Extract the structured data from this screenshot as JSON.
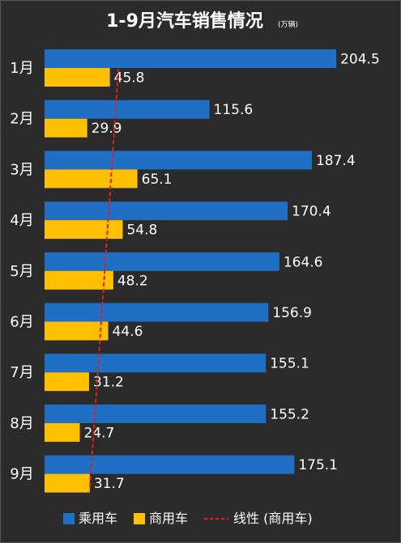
{
  "chart_data": {
    "type": "bar",
    "orientation": "horizontal",
    "title": "1-9月汽车销售情况",
    "unit": "(万辆)",
    "categories": [
      "1月",
      "2月",
      "3月",
      "4月",
      "5月",
      "6月",
      "7月",
      "8月",
      "9月"
    ],
    "series": [
      {
        "name": "乘用车",
        "values": [
          204.5,
          115.6,
          187.4,
          170.4,
          164.6,
          156.9,
          155.1,
          155.2,
          175.1
        ],
        "color": "#1f6fc5"
      },
      {
        "name": "商用车",
        "values": [
          45.8,
          29.9,
          65.1,
          54.8,
          48.2,
          44.6,
          31.2,
          24.7,
          31.7
        ],
        "color": "#ffc000"
      }
    ],
    "trendline": {
      "name": "线性 (商用车)",
      "of_series": "商用车",
      "type": "linear",
      "color": "#e02020",
      "style": "dashed"
    },
    "xlim": [
      0,
      230
    ],
    "grid": false,
    "legend": "bottom",
    "background": "#2b2b2b"
  }
}
